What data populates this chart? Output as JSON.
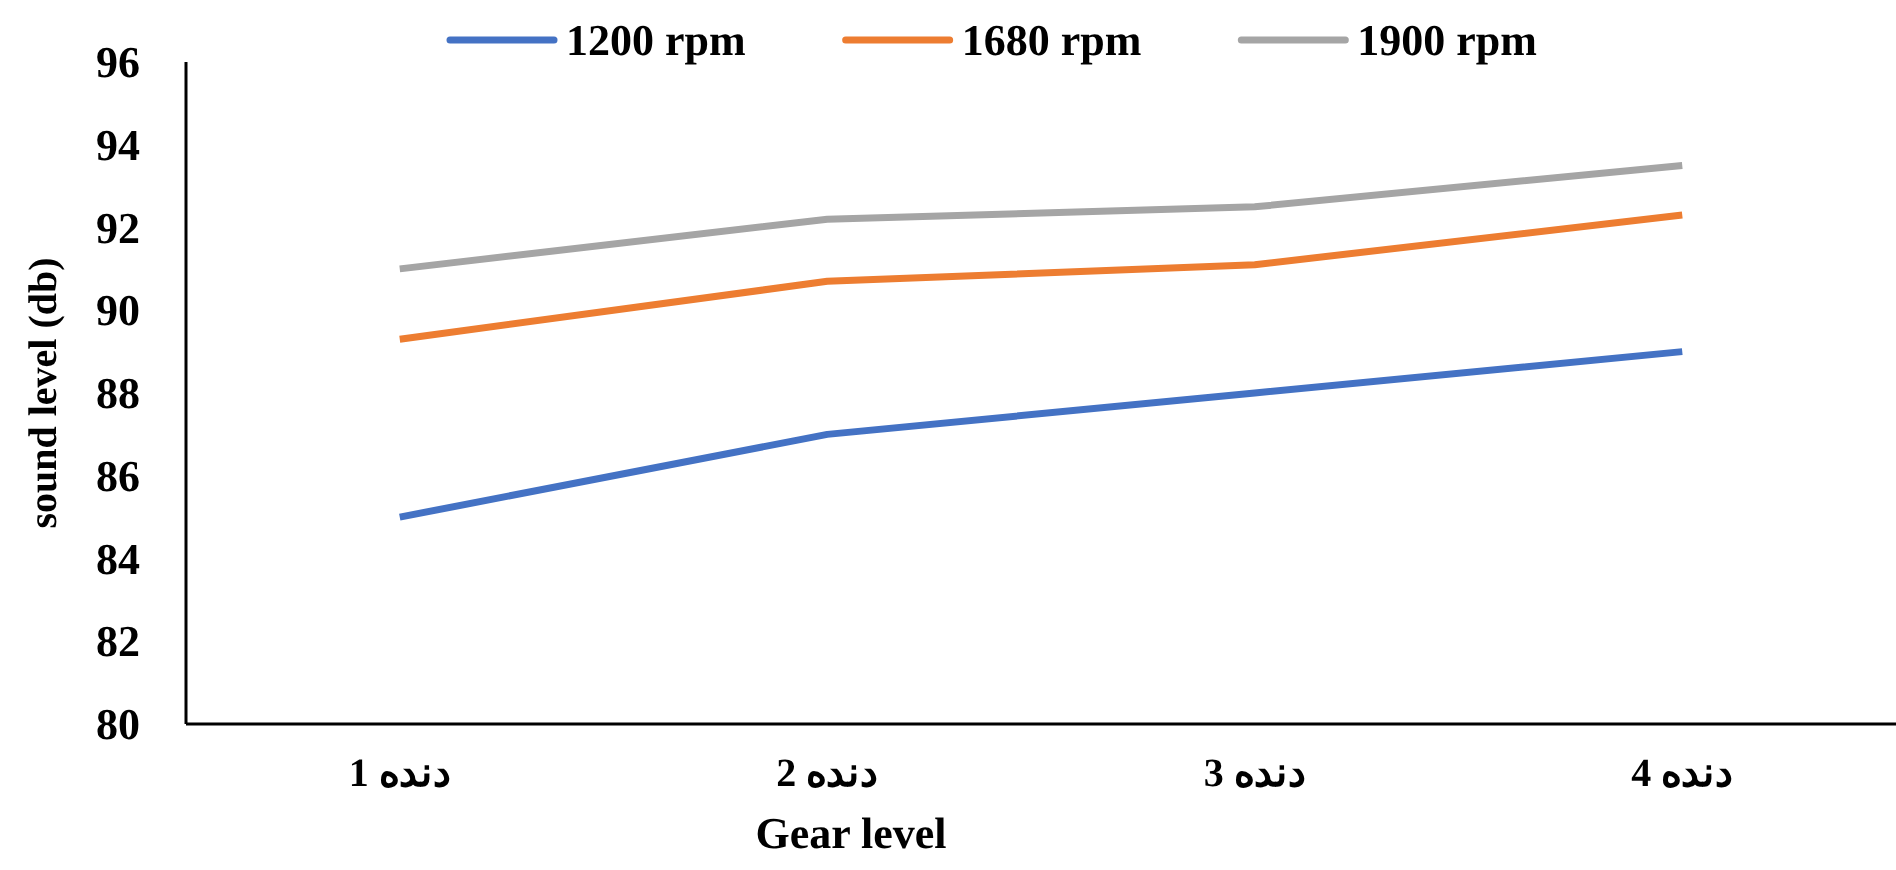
{
  "chart_data": {
    "type": "line",
    "xlabel": "Gear level",
    "ylabel": "sound level (db)",
    "categories": [
      "دنده 1",
      "دنده 2",
      "دنده 3",
      "دنده 4"
    ],
    "series": [
      {
        "name": "1200 rpm",
        "color": "#4472c4",
        "values": [
          85,
          87,
          88,
          89
        ]
      },
      {
        "name": "1680 rpm",
        "color": "#ed7d31",
        "values": [
          89.3,
          90.7,
          91.1,
          92.3
        ]
      },
      {
        "name": "1900 rpm",
        "color": "#a5a5a5",
        "values": [
          91,
          92.2,
          92.5,
          93.5
        ]
      }
    ],
    "ylim": [
      80,
      96
    ],
    "yticks": [
      80,
      82,
      84,
      86,
      88,
      90,
      92,
      94,
      96
    ],
    "grid": false,
    "legend": "top",
    "marker": "none",
    "line_style": "solid"
  }
}
